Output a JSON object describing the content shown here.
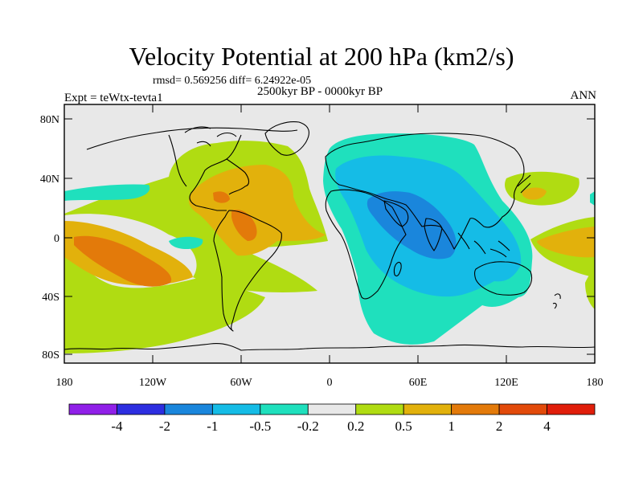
{
  "title": "Velocity Potential at 200 hPa (km2/s)",
  "stats": "rmsd= 0.569256 diff= 6.24922e-05",
  "period": "2500kyr BP - 0000kyr BP",
  "experiment": "Expt = teWtx-tevta1",
  "season": "ANN",
  "lat_ticks": [
    "80N",
    "40N",
    "0",
    "40S",
    "80S"
  ],
  "lon_ticks": [
    "180",
    "120W",
    "60W",
    "0",
    "60E",
    "120E",
    "180"
  ],
  "colorbar": {
    "labels": [
      "-4",
      "-2",
      "-1",
      "-0.5",
      "-0.2",
      "0.2",
      "0.5",
      "1",
      "2",
      "4"
    ],
    "colors": [
      "#9020e8",
      "#2d2ee0",
      "#1a86dc",
      "#15bce6",
      "#1fe0bd",
      "#e8e8e8",
      "#b0dc12",
      "#e2b10c",
      "#e37a0a",
      "#e24a0a",
      "#e01e0a"
    ]
  }
}
